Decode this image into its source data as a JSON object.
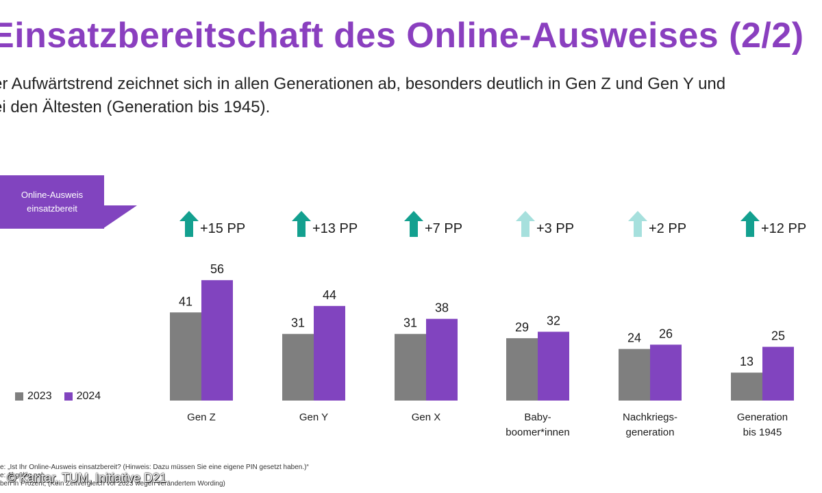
{
  "header": {
    "title": "Einsatzbereitschaft des Online-Ausweises (2/2)",
    "subtitle_line1": "er Aufwärtstrend zeichnet sich in allen Generationen ab, besonders deutlich in Gen Z und Gen Y und",
    "subtitle_line2": "ei den Ältesten (Generation bis 1945)."
  },
  "callout": {
    "line1": "Online-Ausweis",
    "line2": "einsatzbereit"
  },
  "legend": {
    "label_2023": "2023",
    "label_2024": "2024"
  },
  "colors": {
    "purple": "#8144bf",
    "gray": "#7f7f7f",
    "title": "#8a3fbf",
    "arrow_strong": "#13a08f",
    "arrow_light": "#a6e0dd"
  },
  "chart_data": {
    "type": "bar",
    "title": "Online-Ausweis einsatzbereit",
    "categories": [
      [
        "Gen Z"
      ],
      [
        "Gen Y"
      ],
      [
        "Gen X"
      ],
      [
        "Baby-",
        "boomer*innen"
      ],
      [
        "Nachkriegs-",
        "generation"
      ],
      [
        "Generation",
        "bis 1945"
      ]
    ],
    "series": [
      {
        "name": "2023",
        "values": [
          41,
          31,
          31,
          29,
          24,
          13
        ]
      },
      {
        "name": "2024",
        "values": [
          56,
          44,
          38,
          32,
          26,
          25
        ]
      }
    ],
    "changes": [
      "+15 PP",
      "+13 PP",
      "+7 PP",
      "+3 PP",
      "+2 PP",
      "+12 PP"
    ],
    "change_significant": [
      true,
      true,
      true,
      false,
      false,
      true
    ],
    "ylim": [
      0,
      60
    ],
    "xlabel": "",
    "ylabel": "Angaben in Prozent"
  },
  "footnote": {
    "line1": "e: „Ist Ihr Online-Ausweis einsatzbereit? (Hinweis: Dazu müssen Sie eine eigene PIN gesetzt haben.)“",
    "line2": "e: Al                  gültig        nal",
    "line3": "ben in Prozent; (Kein Zeitvergleich vor 2023 wegen verändertem Wording)"
  },
  "copyright": "© Kantar, TUM, Initiative D21"
}
